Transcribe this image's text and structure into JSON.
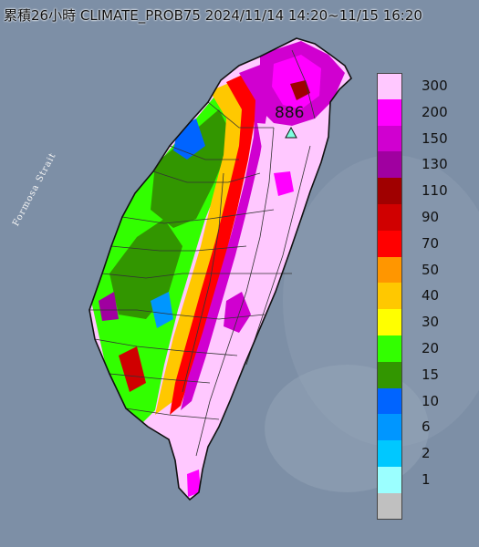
{
  "title": "累積26小時 CLIMATE_PROB75 2024/11/14 14:20~11/15 16:20",
  "strait_label": "Formosa Strait",
  "peak_label": "886",
  "legend": [
    {
      "label": "300",
      "color": "#ffc8ff"
    },
    {
      "label": "200",
      "color": "#ff00ff"
    },
    {
      "label": "150",
      "color": "#d000d0"
    },
    {
      "label": "130",
      "color": "#a000a0"
    },
    {
      "label": "110",
      "color": "#a00000"
    },
    {
      "label": "90",
      "color": "#d00000"
    },
    {
      "label": "70",
      "color": "#ff0000"
    },
    {
      "label": "50",
      "color": "#ff9600"
    },
    {
      "label": "40",
      "color": "#ffc800"
    },
    {
      "label": "30",
      "color": "#ffff00"
    },
    {
      "label": "20",
      "color": "#32ff00"
    },
    {
      "label": "15",
      "color": "#329600"
    },
    {
      "label": "10",
      "color": "#0064ff"
    },
    {
      "label": "6",
      "color": "#0096ff"
    },
    {
      "label": "2",
      "color": "#00c8ff"
    },
    {
      "label": "1",
      "color": "#9bffff"
    },
    {
      "label": "",
      "color": "#c0c0c0"
    }
  ]
}
